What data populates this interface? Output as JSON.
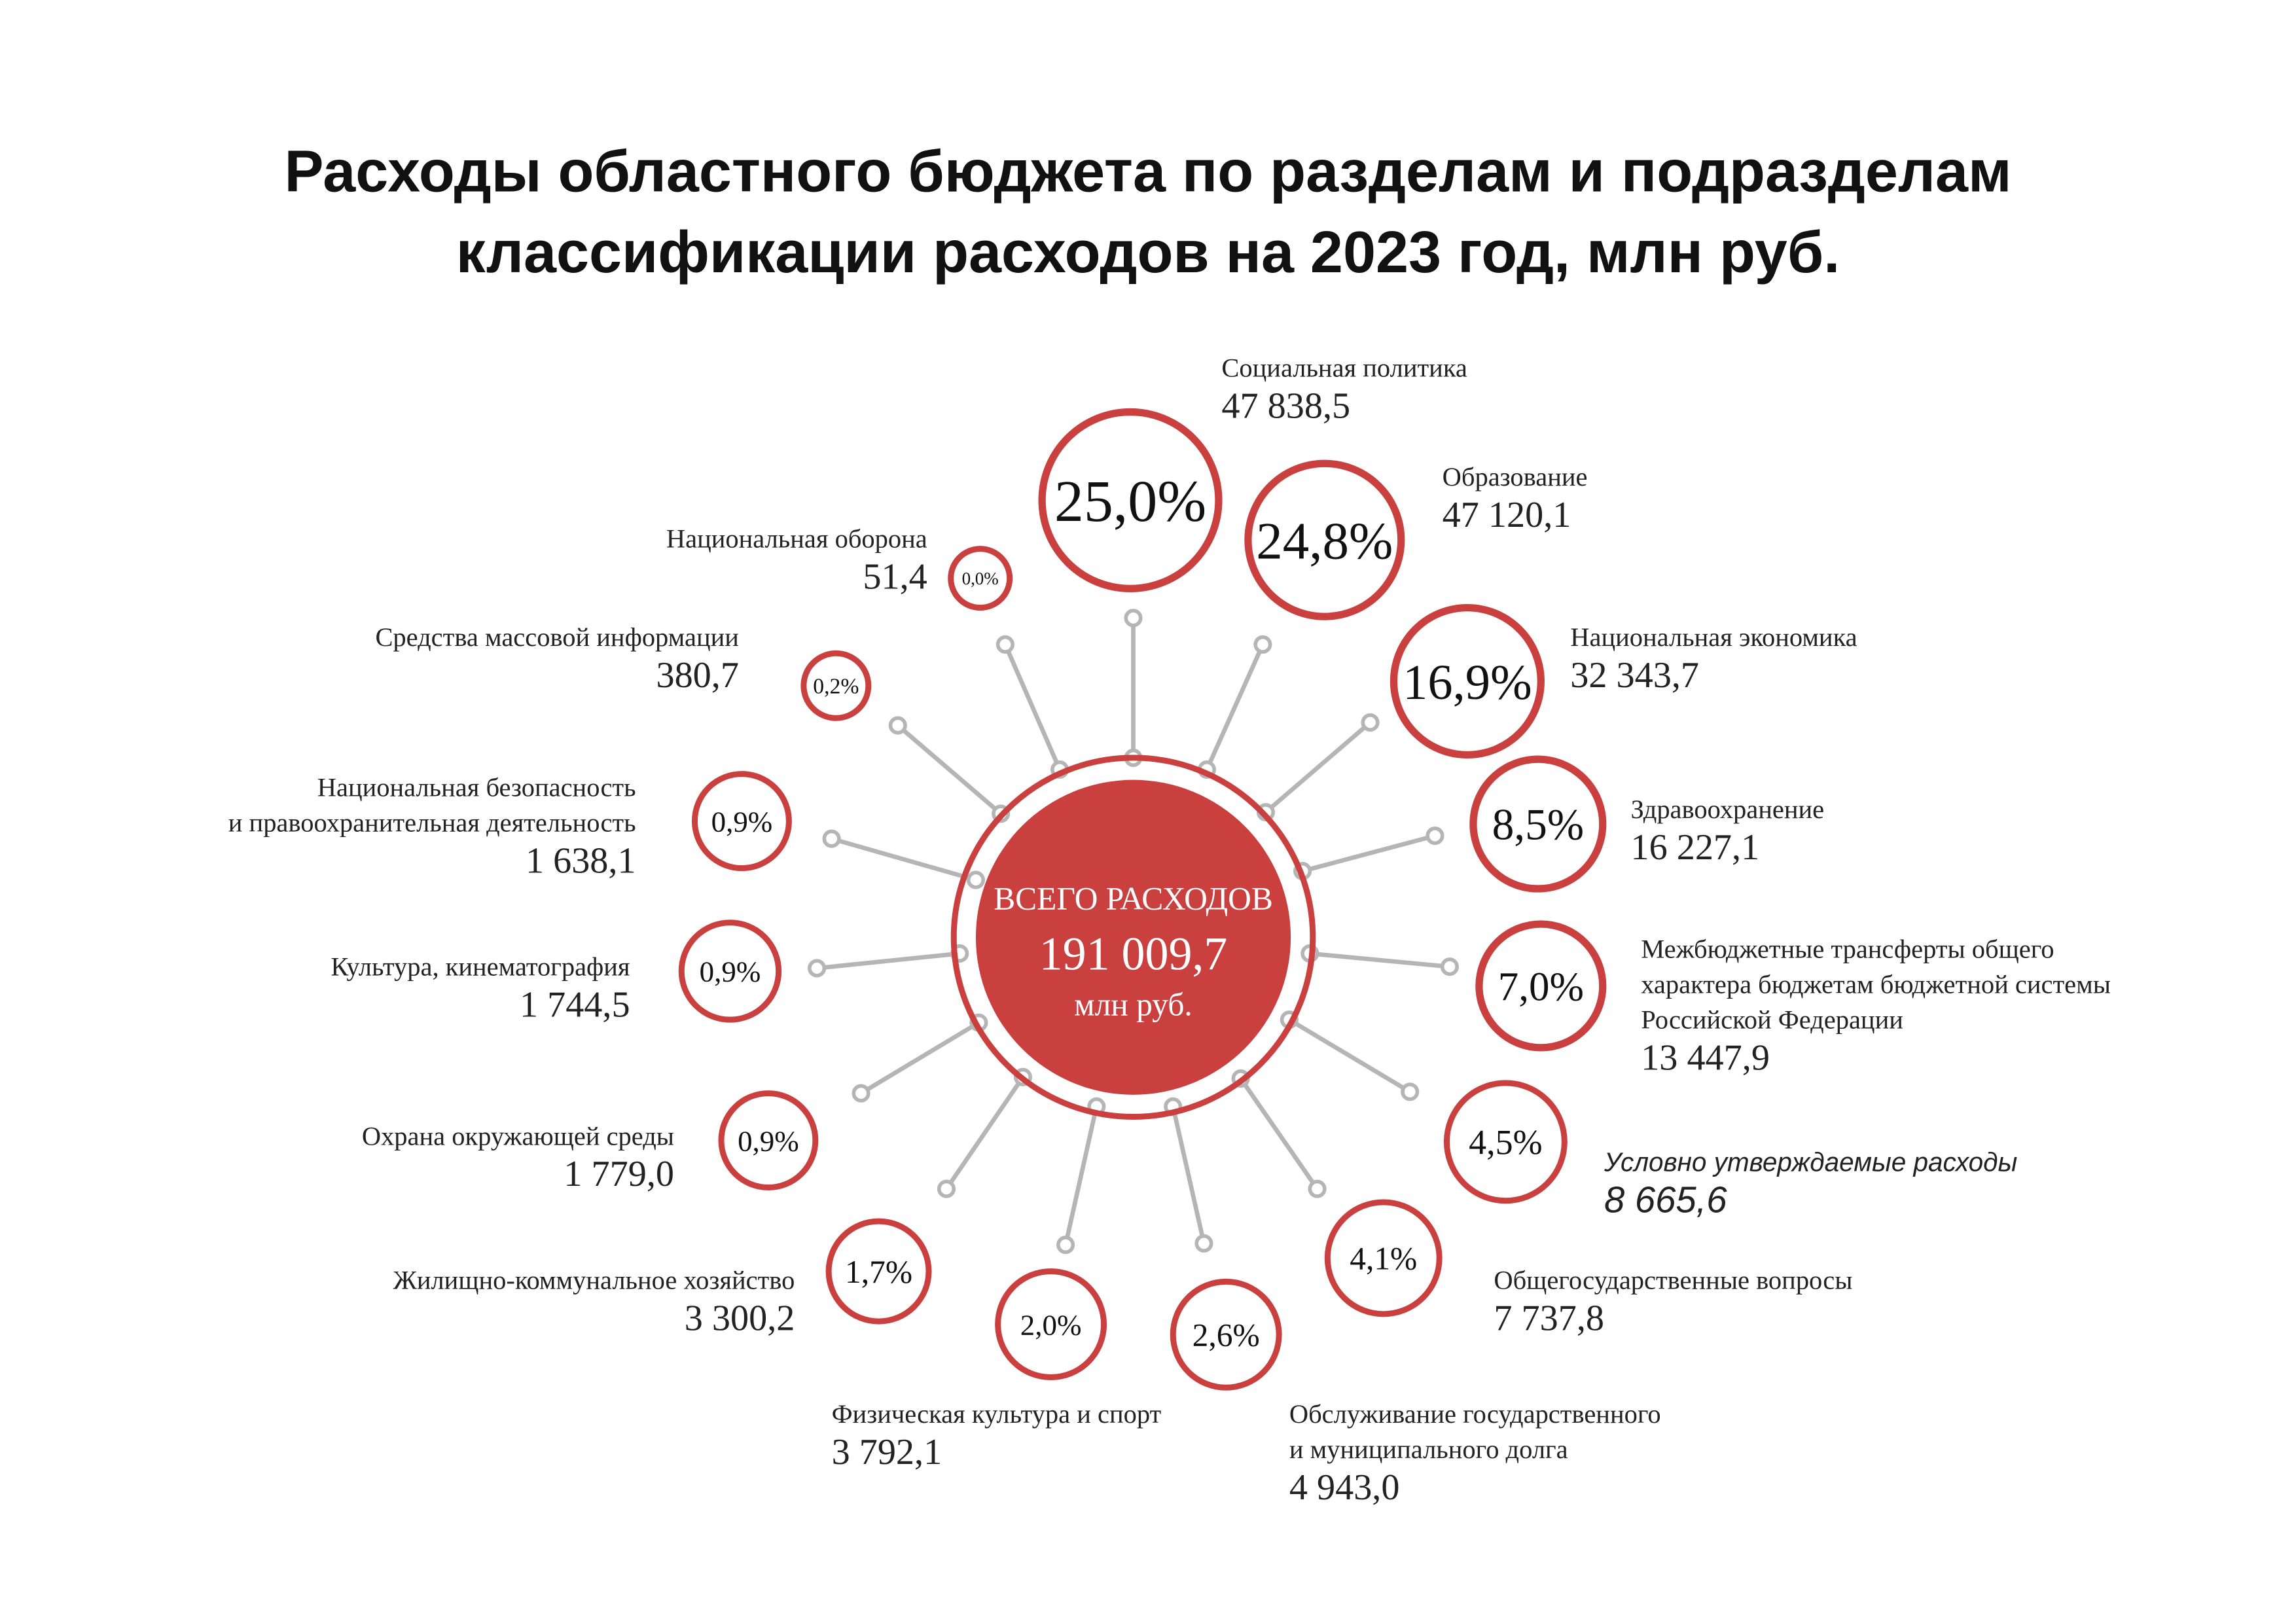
{
  "header": {
    "title_lines": [
      "Расходы областного бюджета по разделам и подразделам",
      "классификации расходов на 2023 год, млн руб."
    ]
  },
  "center": {
    "label": "ВСЕГО РАСХОДОВ",
    "total": "191 009,7",
    "unit": "млн руб."
  },
  "items": [
    {
      "name_lines": [
        "Социальная политика"
      ],
      "value": "47 838,5",
      "percent": "25,0%"
    },
    {
      "name_lines": [
        "Образование"
      ],
      "value": "47 120,1",
      "percent": "24,8%"
    },
    {
      "name_lines": [
        "Национальная экономика"
      ],
      "value": "32 343,7",
      "percent": "16,9%"
    },
    {
      "name_lines": [
        "Здравоохранение"
      ],
      "value": "16 227,1",
      "percent": "8,5%"
    },
    {
      "name_lines": [
        "Межбюджетные трансферты общего",
        "характера бюджетам бюджетной системы",
        "Российской Федерации"
      ],
      "value": "13 447,9",
      "percent": "7,0%"
    },
    {
      "name_lines": [
        "Условно утверждаемые расходы"
      ],
      "value": "8 665,6",
      "percent": "4,5%"
    },
    {
      "name_lines": [
        "Общегосударственные вопросы"
      ],
      "value": "7 737,8",
      "percent": "4,1%"
    },
    {
      "name_lines": [
        "Обслуживание государственного",
        "и муниципального долга"
      ],
      "value": "4 943,0",
      "percent": "2,6%"
    },
    {
      "name_lines": [
        "Физическая культура и спорт"
      ],
      "value": "3 792,1",
      "percent": "2,0%"
    },
    {
      "name_lines": [
        "Жилищно-коммунальное хозяйство"
      ],
      "value": "3 300,2",
      "percent": "1,7%"
    },
    {
      "name_lines": [
        "Охрана окружающей среды"
      ],
      "value": "1 779,0",
      "percent": "0,9%"
    },
    {
      "name_lines": [
        "Культура, кинематография"
      ],
      "value": "1 744,5",
      "percent": "0,9%"
    },
    {
      "name_lines": [
        "Национальная безопасность",
        "и правоохранительная деятельность"
      ],
      "value": "1 638,1",
      "percent": "0,9%"
    },
    {
      "name_lines": [
        "Средства массовой информации"
      ],
      "value": "380,7",
      "percent": "0,2%"
    },
    {
      "name_lines": [
        "Национальная оборона"
      ],
      "value": "51,4",
      "percent": "0,0%"
    }
  ]
}
